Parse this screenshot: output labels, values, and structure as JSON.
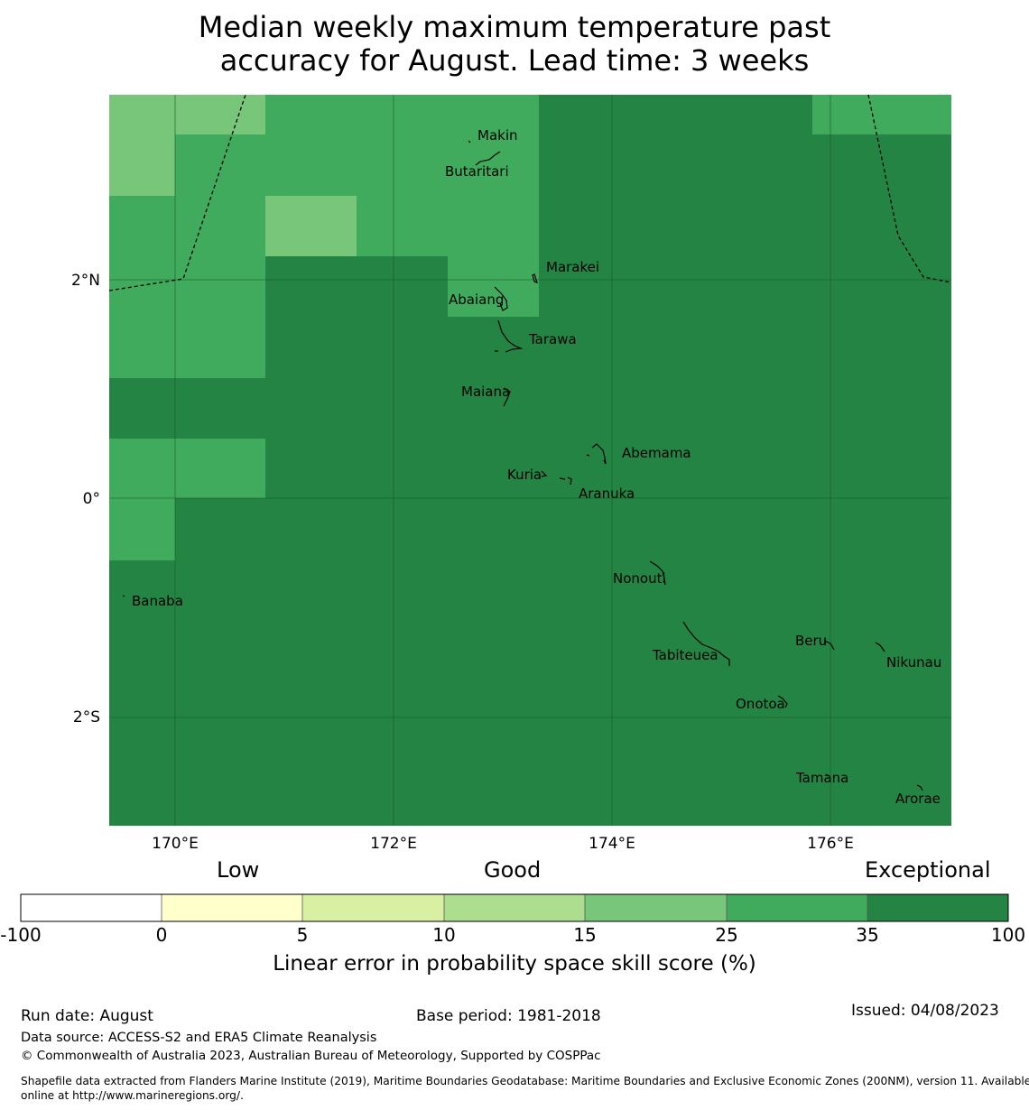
{
  "title_line1": "Median weekly maximum temperature past",
  "title_line2": "accuracy for August. Lead time: 3 weeks",
  "map": {
    "lat_labels": [
      "2°N",
      "0°",
      "2°S"
    ],
    "lon_labels": [
      "170°E",
      "172°E",
      "174°E",
      "176°E"
    ],
    "colors": {
      "exceptional": "#238443",
      "c25_35": "#41ab5d",
      "c15_25": "#78c679"
    },
    "islands": [
      {
        "name": "Makin"
      },
      {
        "name": "Butaritari"
      },
      {
        "name": "Marakei"
      },
      {
        "name": "Abaiang"
      },
      {
        "name": "Tarawa"
      },
      {
        "name": "Maiana"
      },
      {
        "name": "Abemama"
      },
      {
        "name": "Kuria"
      },
      {
        "name": "Aranuka"
      },
      {
        "name": "Nonouti"
      },
      {
        "name": "Banaba"
      },
      {
        "name": "Beru"
      },
      {
        "name": "Tabiteuea"
      },
      {
        "name": "Nikunau"
      },
      {
        "name": "Onotoa"
      },
      {
        "name": "Tamana"
      },
      {
        "name": "Arorae"
      }
    ]
  },
  "colorbar": {
    "category_low": "Low",
    "category_good": "Good",
    "category_exceptional": "Exceptional",
    "ticks": [
      "-100",
      "0",
      "5",
      "10",
      "15",
      "25",
      "35",
      "100"
    ],
    "colors": [
      "#ffffff",
      "#ffffcc",
      "#d9f0a3",
      "#addd8e",
      "#78c679",
      "#41ab5d",
      "#238443"
    ],
    "axis_label": "Linear error in probability space skill score (%)"
  },
  "footer": {
    "run_date": "Run date: August",
    "base_period": "Base period: 1981-2018",
    "issued": "Issued: 04/08/2023",
    "data_source": "Data source: ACCESS-S2 and ERA5 Climate Reanalysis",
    "copyright": "© Commonwealth of Australia 2023, Australian Bureau of Meteorology, Supported by COSPPac",
    "shapefile_line1": "Shapefile data extracted from Flanders Marine Institute (2019), Maritime Boundaries Geodatabase: Maritime Boundaries and Exclusive Economic Zones (200NM), version 11. Available",
    "shapefile_line2": "online at http://www.marineregions.org/."
  }
}
